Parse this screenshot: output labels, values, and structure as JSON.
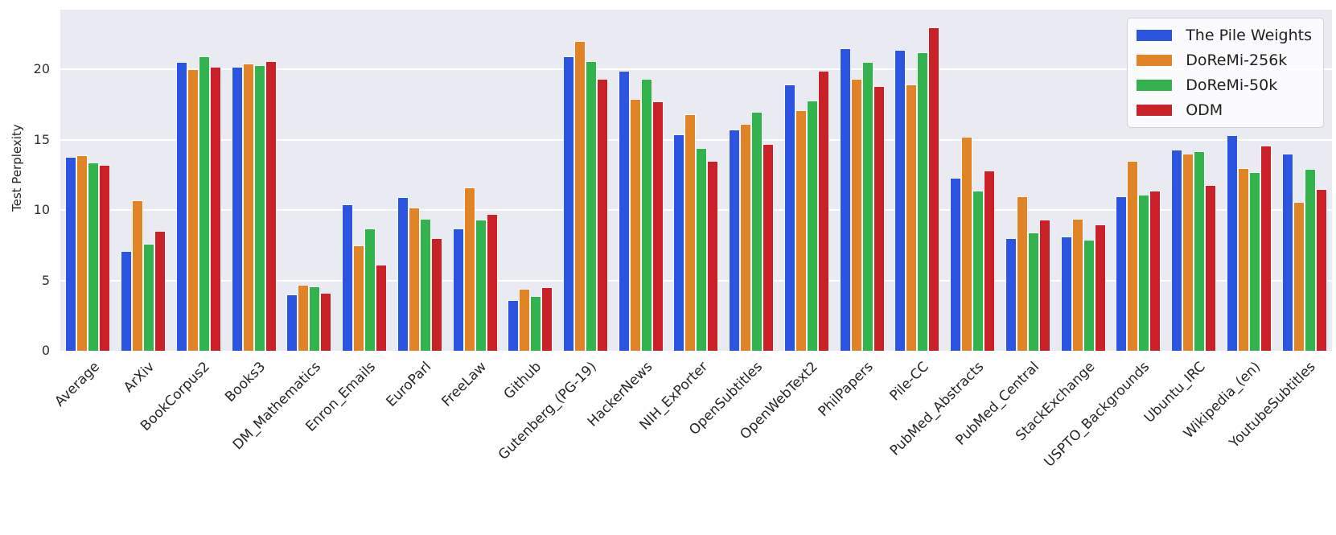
{
  "chart_data": {
    "type": "bar",
    "title": "",
    "xlabel": "",
    "ylabel": "Test Perplexity",
    "ylim": [
      0,
      24.23
    ],
    "yticks": [
      0,
      5,
      10,
      15,
      20
    ],
    "grid": "horizontal white gridlines on lavender panel",
    "legend_position": "upper right",
    "categories": [
      "Average",
      "ArXiv",
      "BookCorpus2",
      "Books3",
      "DM_Mathematics",
      "Enron_Emails",
      "EuroParl",
      "FreeLaw",
      "Github",
      "Gutenberg_(PG-19)",
      "HackerNews",
      "NIH_ExPorter",
      "OpenSubtitles",
      "OpenWebText2",
      "PhilPapers",
      "Pile-CC",
      "PubMed_Abstracts",
      "PubMed_Central",
      "StackExchange",
      "USPTO_Backgrounds",
      "Ubuntu_IRC",
      "Wikipedia_(en)",
      "YoutubeSubtitles"
    ],
    "series": [
      {
        "name": "The Pile Weights",
        "color": "#2b55e0",
        "values": [
          13.8,
          7.1,
          20.5,
          20.2,
          4.0,
          10.4,
          10.9,
          8.7,
          3.6,
          20.9,
          19.9,
          15.4,
          15.7,
          18.9,
          21.5,
          21.4,
          12.3,
          8.0,
          8.1,
          11.0,
          14.3,
          15.3,
          14.0
        ]
      },
      {
        "name": "DoReMi-256k",
        "color": "#e08427",
        "values": [
          13.9,
          10.7,
          20.0,
          20.4,
          4.7,
          7.5,
          10.2,
          11.6,
          4.4,
          22.0,
          17.9,
          16.8,
          16.1,
          17.1,
          19.3,
          18.9,
          15.2,
          11.0,
          9.4,
          13.5,
          14.0,
          13.0,
          10.6
        ]
      },
      {
        "name": "DoReMi-50k",
        "color": "#33b34e",
        "values": [
          13.4,
          7.6,
          20.9,
          20.3,
          4.6,
          8.7,
          9.4,
          9.3,
          3.9,
          20.6,
          19.3,
          14.4,
          17.0,
          17.8,
          20.5,
          21.2,
          11.4,
          8.4,
          7.9,
          11.1,
          14.2,
          12.7,
          12.9
        ]
      },
      {
        "name": "ODM",
        "color": "#c92127",
        "values": [
          13.2,
          8.5,
          20.2,
          20.6,
          4.1,
          6.1,
          8.0,
          9.7,
          4.5,
          19.3,
          17.7,
          13.5,
          14.7,
          19.9,
          18.8,
          23.0,
          12.8,
          9.3,
          9.0,
          11.4,
          11.8,
          14.6,
          11.5
        ]
      }
    ],
    "colors": {
      "plot_background": "#eaeaf2",
      "gridline": "#ffffff",
      "figure_background": "#ffffff",
      "text": "#262626"
    }
  }
}
